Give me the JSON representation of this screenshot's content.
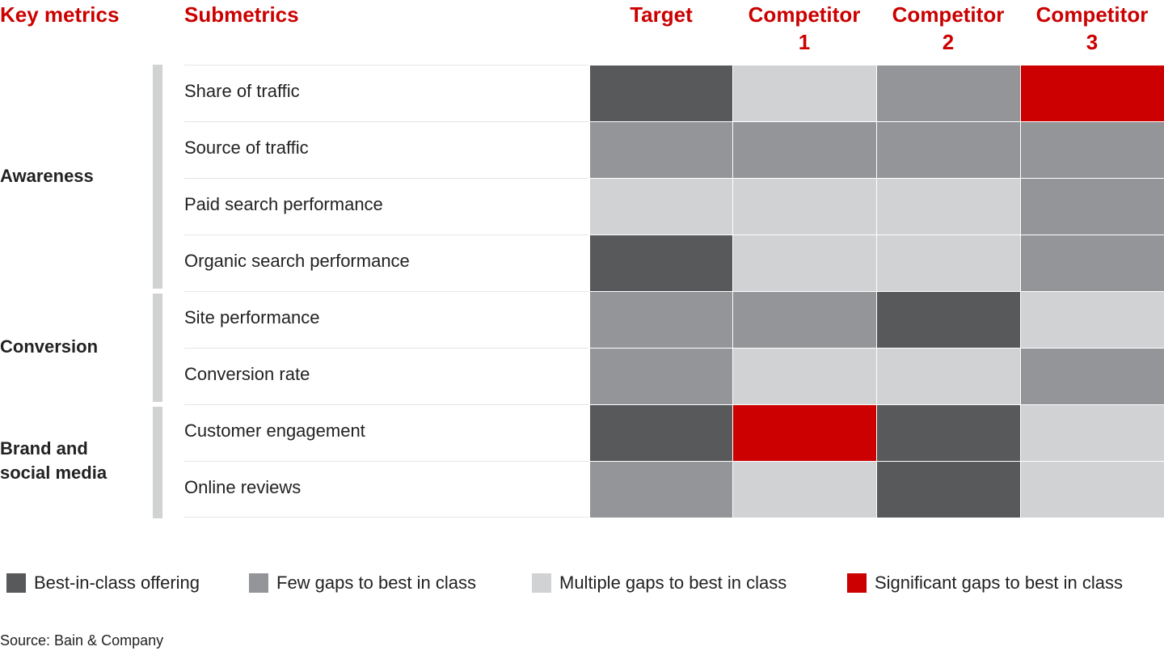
{
  "chart_data": {
    "type": "heatmap",
    "headers": {
      "key_metrics": "Key metrics",
      "submetrics": "Submetrics"
    },
    "columns": [
      [
        "Target",
        ""
      ],
      [
        "Competitor",
        "1"
      ],
      [
        "Competitor",
        "2"
      ],
      [
        "Competitor",
        "3"
      ]
    ],
    "groups": [
      {
        "label": "Awareness",
        "rows": 4
      },
      {
        "label": "Conversion",
        "rows": 2
      },
      {
        "label": "Brand and social media",
        "rows": 2
      }
    ],
    "rows": [
      "Share of traffic",
      "Source of traffic",
      "Paid search performance",
      "Organic search performance",
      "Site performance",
      "Conversion rate",
      "Customer engagement",
      "Online reviews"
    ],
    "values": [
      [
        1,
        3,
        2,
        4
      ],
      [
        2,
        2,
        2,
        2
      ],
      [
        3,
        3,
        3,
        2
      ],
      [
        1,
        3,
        3,
        2
      ],
      [
        2,
        2,
        1,
        3
      ],
      [
        2,
        3,
        3,
        2
      ],
      [
        1,
        4,
        1,
        3
      ],
      [
        2,
        3,
        1,
        3
      ]
    ],
    "legend": [
      {
        "level": 1,
        "label": "Best-in-class offering",
        "color": "#58595b"
      },
      {
        "level": 2,
        "label": "Few gaps to best in class",
        "color": "#939598"
      },
      {
        "level": 3,
        "label": "Multiple gaps to best in class",
        "color": "#d1d2d4"
      },
      {
        "level": 4,
        "label": "Significant gaps to best in class",
        "color": "#cc0000"
      }
    ]
  },
  "source": "Source: Bain & Company"
}
